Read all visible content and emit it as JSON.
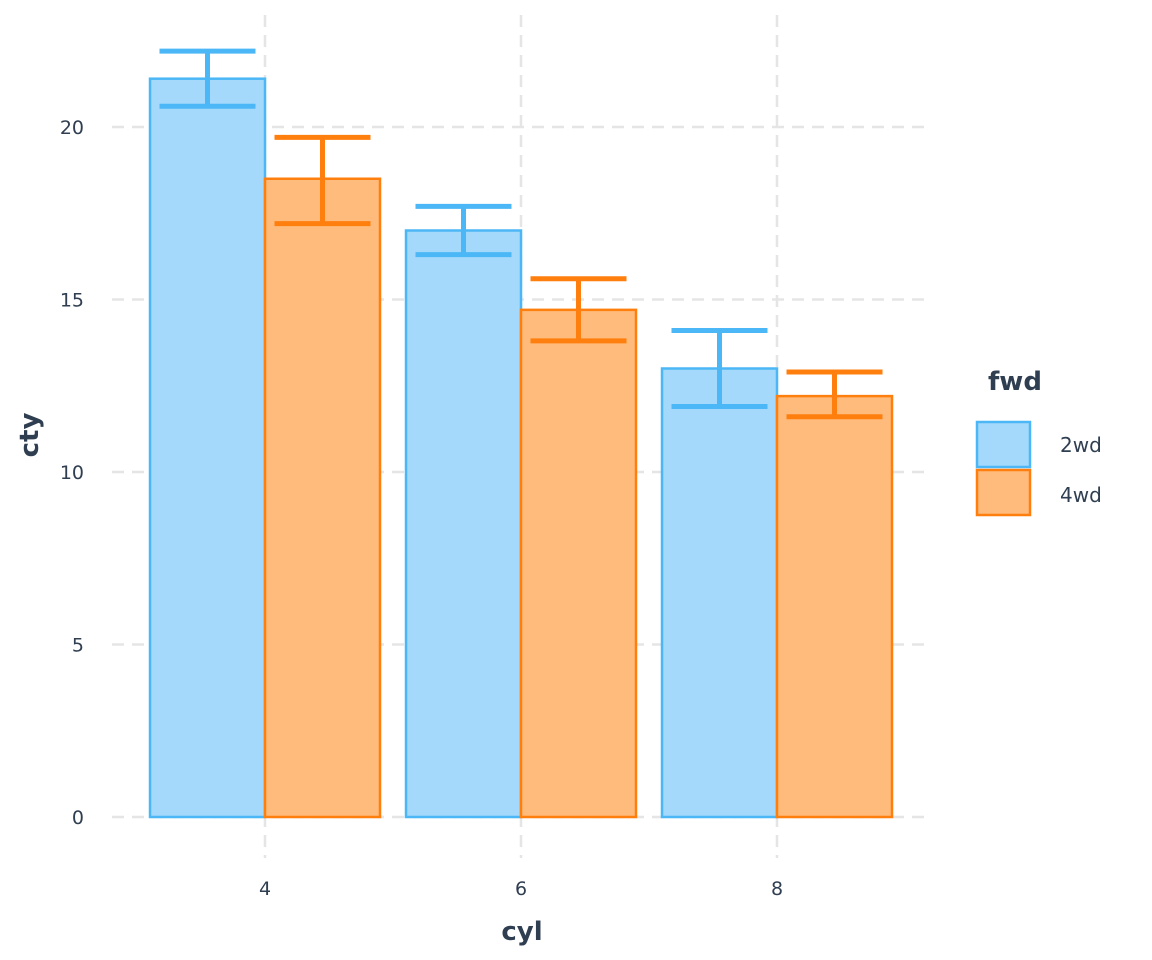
{
  "chart_data": {
    "type": "bar",
    "title": "",
    "xlabel": "cyl",
    "ylabel": "cty",
    "categories": [
      "4",
      "6",
      "8"
    ],
    "ylim": [
      0,
      23
    ],
    "yticks": [
      0,
      5,
      10,
      15,
      20
    ],
    "grid": true,
    "legend": {
      "title": "fwd",
      "placement": "right"
    },
    "series": [
      {
        "name": "2wd",
        "values": [
          21.4,
          17.0,
          13.0
        ],
        "error_low": [
          20.6,
          16.3,
          11.9
        ],
        "error_high": [
          22.2,
          17.7,
          14.1
        ],
        "fill": "#a5d9fb",
        "stroke": "#4cb7f6"
      },
      {
        "name": "4wd",
        "values": [
          18.5,
          14.7,
          12.2
        ],
        "error_low": [
          17.2,
          13.8,
          11.6
        ],
        "error_high": [
          19.7,
          15.6,
          12.9
        ],
        "fill": "#ffbb7c",
        "stroke": "#ff7f0e"
      }
    ]
  }
}
